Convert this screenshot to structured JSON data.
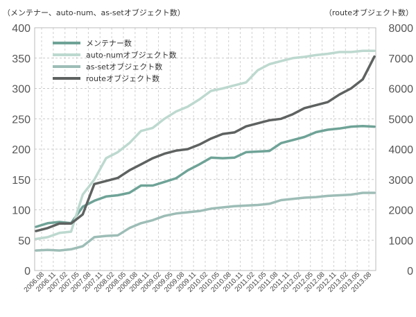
{
  "chart_data": {
    "type": "line",
    "ylabel_left": "（メンテナー、auto-num、as-setオブジェクト数）",
    "ylabel_right": "（routeオブジェクト数）",
    "ylim_left": [
      0,
      400
    ],
    "ylim_right": [
      0,
      8000
    ],
    "yticks_left": [
      "0",
      "50",
      "100",
      "150",
      "200",
      "250",
      "300",
      "350",
      "400"
    ],
    "yticks_right": [
      "0",
      "1000",
      "2000",
      "3000",
      "4000",
      "5000",
      "6000",
      "7000",
      "8000"
    ],
    "xticks": [
      "2006.08",
      "2006.11",
      "2007.02",
      "2007.05",
      "2007.08",
      "2007.11",
      "2008.02",
      "2008.05",
      "2008.08",
      "2008.11",
      "2009.02",
      "2009.05",
      "2009.08",
      "2009.11",
      "2010.02",
      "2010.05",
      "2010.08",
      "2010.11",
      "2011.02",
      "2011.05",
      "2011.08",
      "2011.11",
      "2012.02",
      "2012.05",
      "2012.08",
      "2012.11",
      "2013.02",
      "2013.05",
      "2013.08"
    ],
    "grid": true,
    "legend_position": "top-left",
    "series": [
      {
        "name": "メンテナー数",
        "axis": "left",
        "color": "#6fa397",
        "values": [
          72,
          78,
          80,
          78,
          105,
          115,
          122,
          124,
          128,
          140,
          140,
          146,
          152,
          165,
          175,
          186,
          185,
          186,
          195,
          196,
          197,
          210,
          215,
          220,
          228,
          232,
          234,
          237,
          238,
          237
        ]
      },
      {
        "name": "auto-numオブジェクト数",
        "axis": "left",
        "color": "#bdd9cf",
        "values": [
          52,
          55,
          62,
          64,
          125,
          150,
          185,
          195,
          210,
          230,
          235,
          250,
          262,
          270,
          282,
          296,
          300,
          305,
          310,
          330,
          340,
          345,
          350,
          352,
          355,
          357,
          360,
          360,
          362,
          362
        ]
      },
      {
        "name": "as-setオブジェクト数",
        "axis": "left",
        "color": "#9dbdb6",
        "values": [
          33,
          34,
          33,
          35,
          40,
          55,
          57,
          58,
          70,
          78,
          83,
          90,
          94,
          96,
          98,
          102,
          104,
          106,
          107,
          108,
          110,
          116,
          118,
          120,
          121,
          123,
          124,
          125,
          128,
          128
        ]
      },
      {
        "name": "routeオブジェクト数",
        "axis": "right",
        "color": "#5e6260",
        "values": [
          1300,
          1400,
          1550,
          1550,
          1850,
          2850,
          2950,
          3050,
          3300,
          3500,
          3700,
          3850,
          3950,
          4000,
          4150,
          4350,
          4500,
          4550,
          4750,
          4850,
          4950,
          5000,
          5150,
          5350,
          5450,
          5550,
          5800,
          6000,
          6300,
          7050
        ]
      }
    ]
  }
}
